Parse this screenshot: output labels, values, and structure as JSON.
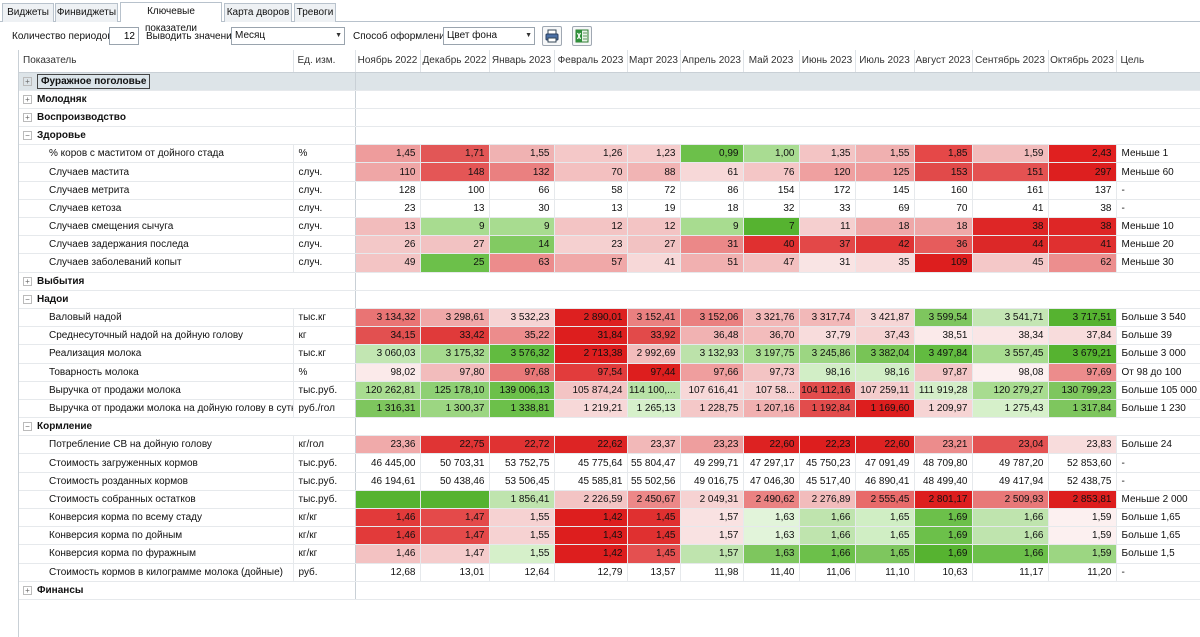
{
  "tabs": [
    {
      "label": "Виджеты"
    },
    {
      "label": "Финвиджеты"
    },
    {
      "label": "Ключевые показатели",
      "active": true
    },
    {
      "label": "Карта дворов"
    },
    {
      "label": "Тревоги"
    }
  ],
  "toolbar": {
    "periods_label": "Количество периодов:",
    "periods_value": "12",
    "show_values_label": "Выводить значения:",
    "show_values_selected": "Месяц",
    "style_label": "Способ оформления:",
    "style_selected": "Цвет фона",
    "print_icon": "printer-icon",
    "excel_icon": "excel-export-icon"
  },
  "table": {
    "headers": {
      "indicator": "Показатель",
      "unit": "Ед. изм.",
      "goal": "Цель",
      "months": [
        "Ноябрь 2022",
        "Декабрь 2022",
        "Январь 2023",
        "Февраль 2023",
        "Март 2023",
        "Апрель 2023",
        "Май 2023",
        "Июнь 2023",
        "Июль 2023",
        "Август 2023",
        "Сентябрь 2023",
        "Октябрь 2023"
      ]
    },
    "sections": [
      {
        "title": "Фуражное поголовье",
        "selected": true,
        "rows": []
      },
      {
        "title": "Молодняк",
        "rows": []
      },
      {
        "title": "Воспроизводство",
        "rows": []
      },
      {
        "title": "Здоровье",
        "rows": [
          {
            "name": "% коров с маститом от дойного стада",
            "unit": "%",
            "values": [
              "1,45",
              "1,71",
              "1,55",
              "1,26",
              "1,23",
              "0,99",
              "1,00",
              "1,35",
              "1,55",
              "1,85",
              "1,59",
              "2,43"
            ],
            "colors": [
              "#ee9c9c",
              "#e25656",
              "#f0b2b2",
              "#f4c8c8",
              "#f5cccc",
              "#6cc04a",
              "#a9dc92",
              "#f3c4c4",
              "#f0b0b0",
              "#e54848",
              "#f2bcbc",
              "#e02020"
            ],
            "goal": "Меньше 1"
          },
          {
            "name": "Случаев мастита",
            "unit": "случ.",
            "values": [
              "110",
              "148",
              "132",
              "70",
              "88",
              "61",
              "76",
              "120",
              "125",
              "153",
              "151",
              "297"
            ],
            "colors": [
              "#efa6a6",
              "#e45656",
              "#ea8080",
              "#f3c0c0",
              "#f1b4b4",
              "#f7d8d8",
              "#f4c6c6",
              "#efa0a0",
              "#ee9c9c",
              "#e14a4a",
              "#e45252",
              "#dd1f1f"
            ],
            "goal": "Меньше 60"
          },
          {
            "name": "Случаев метрита",
            "unit": "случ.",
            "values": [
              "128",
              "100",
              "66",
              "58",
              "72",
              "86",
              "154",
              "172",
              "145",
              "160",
              "161",
              "137"
            ],
            "colors": [],
            "goal": "-"
          },
          {
            "name": "Случаев кетоза",
            "unit": "случ.",
            "values": [
              "23",
              "13",
              "30",
              "13",
              "19",
              "18",
              "32",
              "33",
              "69",
              "70",
              "41",
              "38"
            ],
            "colors": [],
            "goal": "-"
          },
          {
            "name": "Случаев смещения сычуга",
            "unit": "случ.",
            "values": [
              "13",
              "9",
              "9",
              "12",
              "12",
              "9",
              "7",
              "11",
              "18",
              "18",
              "38",
              "38"
            ],
            "colors": [
              "#f2bcbc",
              "#a8dc90",
              "#a8dc90",
              "#f3c4c4",
              "#f3c4c4",
              "#a8dc90",
              "#56b330",
              "#f5cfcf",
              "#efa8a8",
              "#efa8a8",
              "#de2626",
              "#de2626"
            ],
            "goal": "Меньше 10"
          },
          {
            "name": "Случаев задержания последа",
            "unit": "случ.",
            "values": [
              "26",
              "27",
              "14",
              "23",
              "27",
              "31",
              "40",
              "37",
              "42",
              "36",
              "44",
              "41"
            ],
            "colors": [
              "#f3c8c8",
              "#f2c2c2",
              "#82ca62",
              "#f5d0d0",
              "#f2c2c2",
              "#eb8888",
              "#e03030",
              "#e34848",
              "#e03434",
              "#e65c5c",
              "#dc2828",
              "#e03030"
            ],
            "goal": "Меньше 20"
          },
          {
            "name": "Случаев заболеваний копыт",
            "unit": "случ.",
            "values": [
              "49",
              "25",
              "63",
              "57",
              "41",
              "51",
              "47",
              "31",
              "35",
              "109",
              "45",
              "62"
            ],
            "colors": [
              "#f3c4c4",
              "#6cc04a",
              "#ec8c8c",
              "#f0a8a8",
              "#f7d8d8",
              "#f1b0b0",
              "#f3c0c0",
              "#f9e4e4",
              "#f8dcdc",
              "#dd1e1e",
              "#f4c8c8",
              "#ec8e8e"
            ],
            "goal": "Меньше 30"
          }
        ]
      },
      {
        "title": "Выбытия",
        "rows": []
      },
      {
        "title": "Надои",
        "rows": [
          {
            "name": "Валовый надой",
            "unit": "тыс.кг",
            "values": [
              "3 134,32",
              "3 298,61",
              "3 532,23",
              "2 890,01",
              "3 152,41",
              "3 152,06",
              "3 321,76",
              "3 317,74",
              "3 421,87",
              "3 599,54",
              "3 541,71",
              "3 717,51"
            ],
            "colors": [
              "#e97474",
              "#f0a8a8",
              "#f6d4d4",
              "#dd2020",
              "#ea8080",
              "#ea8080",
              "#f2b8b8",
              "#f2b8b8",
              "#f6d6d6",
              "#7ec65e",
              "#c4e6b4",
              "#56b330"
            ],
            "goal": "Больше 3 540"
          },
          {
            "name": "Среднесуточный надой на дойную голову",
            "unit": "кг",
            "values": [
              "34,15",
              "33,42",
              "35,22",
              "31,84",
              "33,92",
              "36,48",
              "36,70",
              "37,79",
              "37,43",
              "38,51",
              "38,34",
              "37,84"
            ],
            "colors": [
              "#e25050",
              "#e03a3a",
              "#ec8c8c",
              "#dd1e1e",
              "#e24a4a",
              "#f1b2b2",
              "#f3bcbc",
              "#f8dcdc",
              "#f6d2d2",
              "#fbeaea",
              "#fae6e6",
              "#f8dcdc"
            ],
            "goal": "Больше 39"
          },
          {
            "name": "Реализация молока",
            "unit": "тыс.кг",
            "values": [
              "3 060,03",
              "3 175,32",
              "3 576,32",
              "2 713,38",
              "2 992,69",
              "3 132,93",
              "3 197,75",
              "3 245,86",
              "3 382,04",
              "3 497,84",
              "3 557,45",
              "3 679,21"
            ],
            "colors": [
              "#c2e6b2",
              "#a6da8e",
              "#62bb40",
              "#dd1e1e",
              "#f2bcbc",
              "#bce2aa",
              "#a8dc90",
              "#9cd682",
              "#78c456",
              "#62bb40",
              "#a8dc90",
              "#56b330"
            ],
            "goal": "Больше 3 000"
          },
          {
            "name": "Товарность молока",
            "unit": "%",
            "values": [
              "98,02",
              "97,80",
              "97,68",
              "97,54",
              "97,44",
              "97,66",
              "97,73",
              "98,16",
              "98,16",
              "97,87",
              "98,08",
              "97,69"
            ],
            "colors": [
              "#fbeaea",
              "#f2bcbc",
              "#e97878",
              "#e23c3c",
              "#dd1e1e",
              "#ef9e9e",
              "#f3c4c4",
              "#d2eec6",
              "#d2eec6",
              "#f3c6c6",
              "#fcf0f0",
              "#ec8c8c"
            ],
            "goal": "От 98 до 100"
          },
          {
            "name": "Выручка от продажи молока",
            "unit": "тыс.руб.",
            "values": [
              "120 262,81",
              "125 178,10",
              "139 006,13",
              "105 874,24",
              "114 100,...",
              "107 616,41",
              "107 58...",
              "104 112,16",
              "107 259,11",
              "111 919,28",
              "120 279,27",
              "130 799,23"
            ],
            "colors": [
              "#a8dc90",
              "#8ed074",
              "#6cc04a",
              "#f3c4c4",
              "#b8e2a6",
              "#f7d8d8",
              "#f5d0d0",
              "#e24c4c",
              "#f4cccc",
              "#d4eec8",
              "#a8dc90",
              "#7ec65e"
            ],
            "goal": "Больше 105 000"
          },
          {
            "name": "Выручка от продажи молока на дойную голову в сутки",
            "unit": "руб./гол",
            "values": [
              "1 316,31",
              "1 300,37",
              "1 338,81",
              "1 219,21",
              "1 265,13",
              "1 228,75",
              "1 207,16",
              "1 192,84",
              "1 169,60",
              "1 209,97",
              "1 275,43",
              "1 317,84"
            ],
            "colors": [
              "#7ec65e",
              "#9cd682",
              "#6cc04a",
              "#f7d8d8",
              "#d6f0ca",
              "#f4c8c8",
              "#f1b0b0",
              "#e24c4c",
              "#dd1e1e",
              "#f6d4d4",
              "#d6f0ca",
              "#7ec65e"
            ],
            "goal": "Больше 1 230"
          }
        ]
      },
      {
        "title": "Кормление",
        "rows": [
          {
            "name": "Потребление СВ на дойную голову",
            "unit": "кг/гол",
            "values": [
              "23,36",
              "22,75",
              "22,72",
              "22,62",
              "23,37",
              "23,23",
              "22,60",
              "22,23",
              "22,60",
              "23,21",
              "23,04",
              "23,83"
            ],
            "colors": [
              "#f0aaaa",
              "#e03434",
              "#e03232",
              "#dd2424",
              "#f2b8b8",
              "#ee9e9e",
              "#dd2222",
              "#dd1e1e",
              "#dd2222",
              "#ec8c8c",
              "#e45252",
              "#f8dcdc"
            ],
            "goal": "Больше 24"
          },
          {
            "name": "Стоимость загруженных кормов",
            "unit": "тыс.руб.",
            "values": [
              "46 445,00",
              "50 703,31",
              "53 752,75",
              "45 775,64",
              "55 804,47",
              "49 299,71",
              "47 297,17",
              "45 750,23",
              "47 091,49",
              "48 709,80",
              "49 787,20",
              "52 853,60"
            ],
            "colors": [],
            "goal": "-"
          },
          {
            "name": "Стоимость розданных кормов",
            "unit": "тыс.руб.",
            "values": [
              "46 194,61",
              "50 438,46",
              "53 506,45",
              "45 585,81",
              "55 502,56",
              "49 016,75",
              "47 046,30",
              "45 517,40",
              "46 890,41",
              "48 499,40",
              "49 417,94",
              "52 438,75"
            ],
            "colors": [],
            "goal": "-"
          },
          {
            "name": "Стоимость собранных остатков",
            "unit": "тыс.руб.",
            "values": [
              "",
              "",
              "1 856,41",
              "2 226,59",
              "2 450,67",
              "2 049,31",
              "2 490,62",
              "2 276,89",
              "2 555,45",
              "2 801,17",
              "2 509,93",
              "2 853,81"
            ],
            "colors": [
              "#56b330",
              "#56b330",
              "#bfe4ae",
              "#f3c4c4",
              "#ec8888",
              "#f6d2d2",
              "#ea8282",
              "#f2bcbc",
              "#e86a6a",
              "#dd1e1e",
              "#e87878",
              "#dd1e1e"
            ],
            "goal": "Меньше 2 000"
          },
          {
            "name": "Конверсия корма по всему стаду",
            "unit": "кг/кг",
            "values": [
              "1,46",
              "1,47",
              "1,55",
              "1,42",
              "1,45",
              "1,57",
              "1,63",
              "1,66",
              "1,65",
              "1,69",
              "1,66",
              "1,59"
            ],
            "colors": [
              "#e23a3a",
              "#e44a4a",
              "#f6d2d2",
              "#dd1e1e",
              "#e03030",
              "#f9e2e2",
              "#e2f4da",
              "#bfe4ae",
              "#d0eec4",
              "#6cc04a",
              "#bfe4ae",
              "#fcf0f0"
            ],
            "goal": "Больше 1,65"
          },
          {
            "name": "Конверсия корма по дойным",
            "unit": "кг/кг",
            "values": [
              "1,46",
              "1,47",
              "1,55",
              "1,43",
              "1,45",
              "1,57",
              "1,63",
              "1,66",
              "1,65",
              "1,69",
              "1,66",
              "1,59"
            ],
            "colors": [
              "#e23a3a",
              "#e44a4a",
              "#f6d2d2",
              "#dd1e1e",
              "#e03030",
              "#f9e2e2",
              "#e2f4da",
              "#bfe4ae",
              "#d0eec4",
              "#6cc04a",
              "#bfe4ae",
              "#fcf0f0"
            ],
            "goal": "Больше 1,65"
          },
          {
            "name": "Конверсия корма по фуражным",
            "unit": "кг/кг",
            "values": [
              "1,46",
              "1,47",
              "1,55",
              "1,42",
              "1,45",
              "1,57",
              "1,63",
              "1,66",
              "1,65",
              "1,69",
              "1,66",
              "1,59"
            ],
            "colors": [
              "#f3c2c2",
              "#f5cccc",
              "#d6f0ca",
              "#dd1e1e",
              "#e45050",
              "#bfe4ae",
              "#7ec65e",
              "#6cc04a",
              "#7ec65e",
              "#56b330",
              "#6cc04a",
              "#9cd682"
            ],
            "goal": "Больше 1,5"
          },
          {
            "name": "Стоимость кормов в килограмме молока (дойные)",
            "unit": "руб.",
            "values": [
              "12,68",
              "13,01",
              "12,64",
              "12,79",
              "13,57",
              "11,98",
              "11,40",
              "11,06",
              "11,10",
              "10,63",
              "11,17",
              "11,20"
            ],
            "colors": [],
            "goal": "-"
          }
        ]
      },
      {
        "title": "Финансы",
        "rows": []
      }
    ]
  }
}
